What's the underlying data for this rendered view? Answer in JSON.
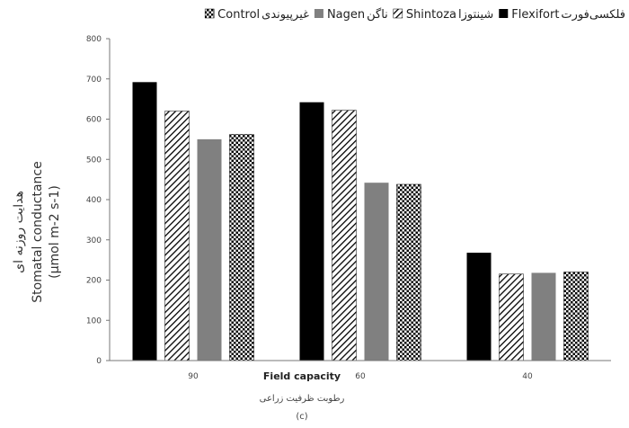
{
  "chart_data": {
    "type": "bar",
    "categories": [
      "90",
      "60",
      "40"
    ],
    "series": [
      {
        "name": "Flexifort",
        "name_fa": "فلکسی‌فورت",
        "values": [
          692,
          642,
          268
        ],
        "color": "#000000",
        "pattern": "solid"
      },
      {
        "name": "Shintoza",
        "name_fa": "شینتوزا",
        "values": [
          620,
          622,
          215
        ],
        "color": "#000000",
        "pattern": "diagonal"
      },
      {
        "name": "Nagen",
        "name_fa": "ناگن",
        "values": [
          550,
          442,
          218
        ],
        "color": "#808080",
        "pattern": "solid"
      },
      {
        "name": "Control",
        "name_fa": "غیرپیوندی",
        "values": [
          562,
          438,
          220
        ],
        "color": "#000000",
        "pattern": "checker"
      }
    ],
    "ylim": [
      0,
      800
    ],
    "yticks": [
      "0",
      "100",
      "200",
      "300",
      "400",
      "500",
      "600",
      "700",
      "800"
    ],
    "ylabel_en": "Stomatal conductance",
    "ylabel_unit": "(μmol m-2 s-1)",
    "ylabel_fa": "هدایت روزنه ای",
    "xlabel_en": "Field capacity",
    "xlabel_fa": "رطوبت ظرفیت زراعی",
    "panel_label": "(c)",
    "legend_position": "top",
    "grid": false
  }
}
